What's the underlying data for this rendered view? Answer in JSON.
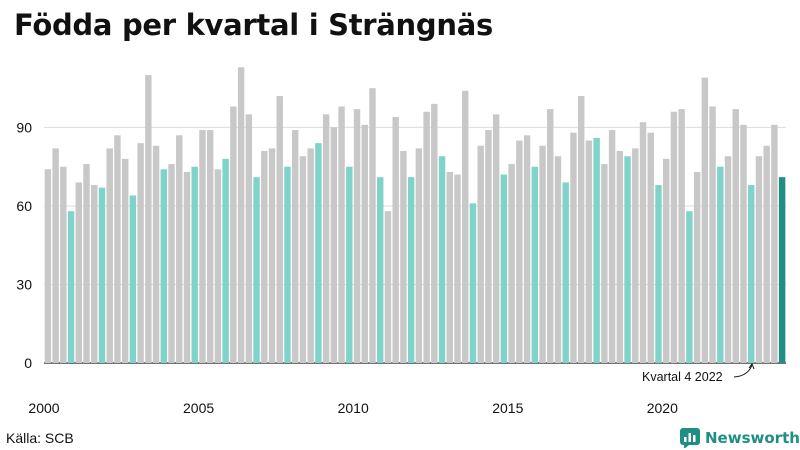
{
  "title": "Födda per kvartal i Strängnäs",
  "source": "Källa: SCB",
  "brand": {
    "name": "Newsworthy",
    "color": "#1f8f84",
    "icon": "bar-chart-logo-icon"
  },
  "colors": {
    "q4": "#7fd3c8",
    "other": "#c8c8c8",
    "highlight": "#1f8f84",
    "grid": "#dcdcdc",
    "baseline": "#222222"
  },
  "chart_data": {
    "type": "bar",
    "title": "Födda per kvartal i Strängnäs",
    "xlabel": "",
    "ylabel": "",
    "ylim": [
      0,
      115
    ],
    "yticks": [
      0,
      30,
      60,
      90
    ],
    "xticks": [
      "2000",
      "2005",
      "2010",
      "2015",
      "2020"
    ],
    "grid": true,
    "period_start": "2000 kvartal 1",
    "period_end": "2022 kvartal 4",
    "annotation": "Kvartal 4 2022",
    "values": [
      74,
      82,
      75,
      58,
      69,
      76,
      68,
      67,
      82,
      87,
      78,
      64,
      84,
      110,
      83,
      74,
      76,
      87,
      73,
      75,
      89,
      89,
      74,
      78,
      98,
      113,
      95,
      71,
      81,
      82,
      102,
      75,
      89,
      79,
      82,
      84,
      95,
      90,
      98,
      75,
      97,
      91,
      105,
      71,
      58,
      94,
      81,
      71,
      82,
      96,
      99,
      79,
      73,
      72,
      104,
      61,
      83,
      89,
      95,
      72,
      76,
      85,
      87,
      75,
      83,
      97,
      79,
      69,
      88,
      102,
      85,
      86,
      76,
      89,
      81,
      79,
      82,
      92,
      88,
      68,
      78,
      96,
      97,
      58,
      73,
      109,
      98,
      75,
      79,
      97,
      91,
      68,
      79,
      83,
      91,
      71
    ]
  }
}
